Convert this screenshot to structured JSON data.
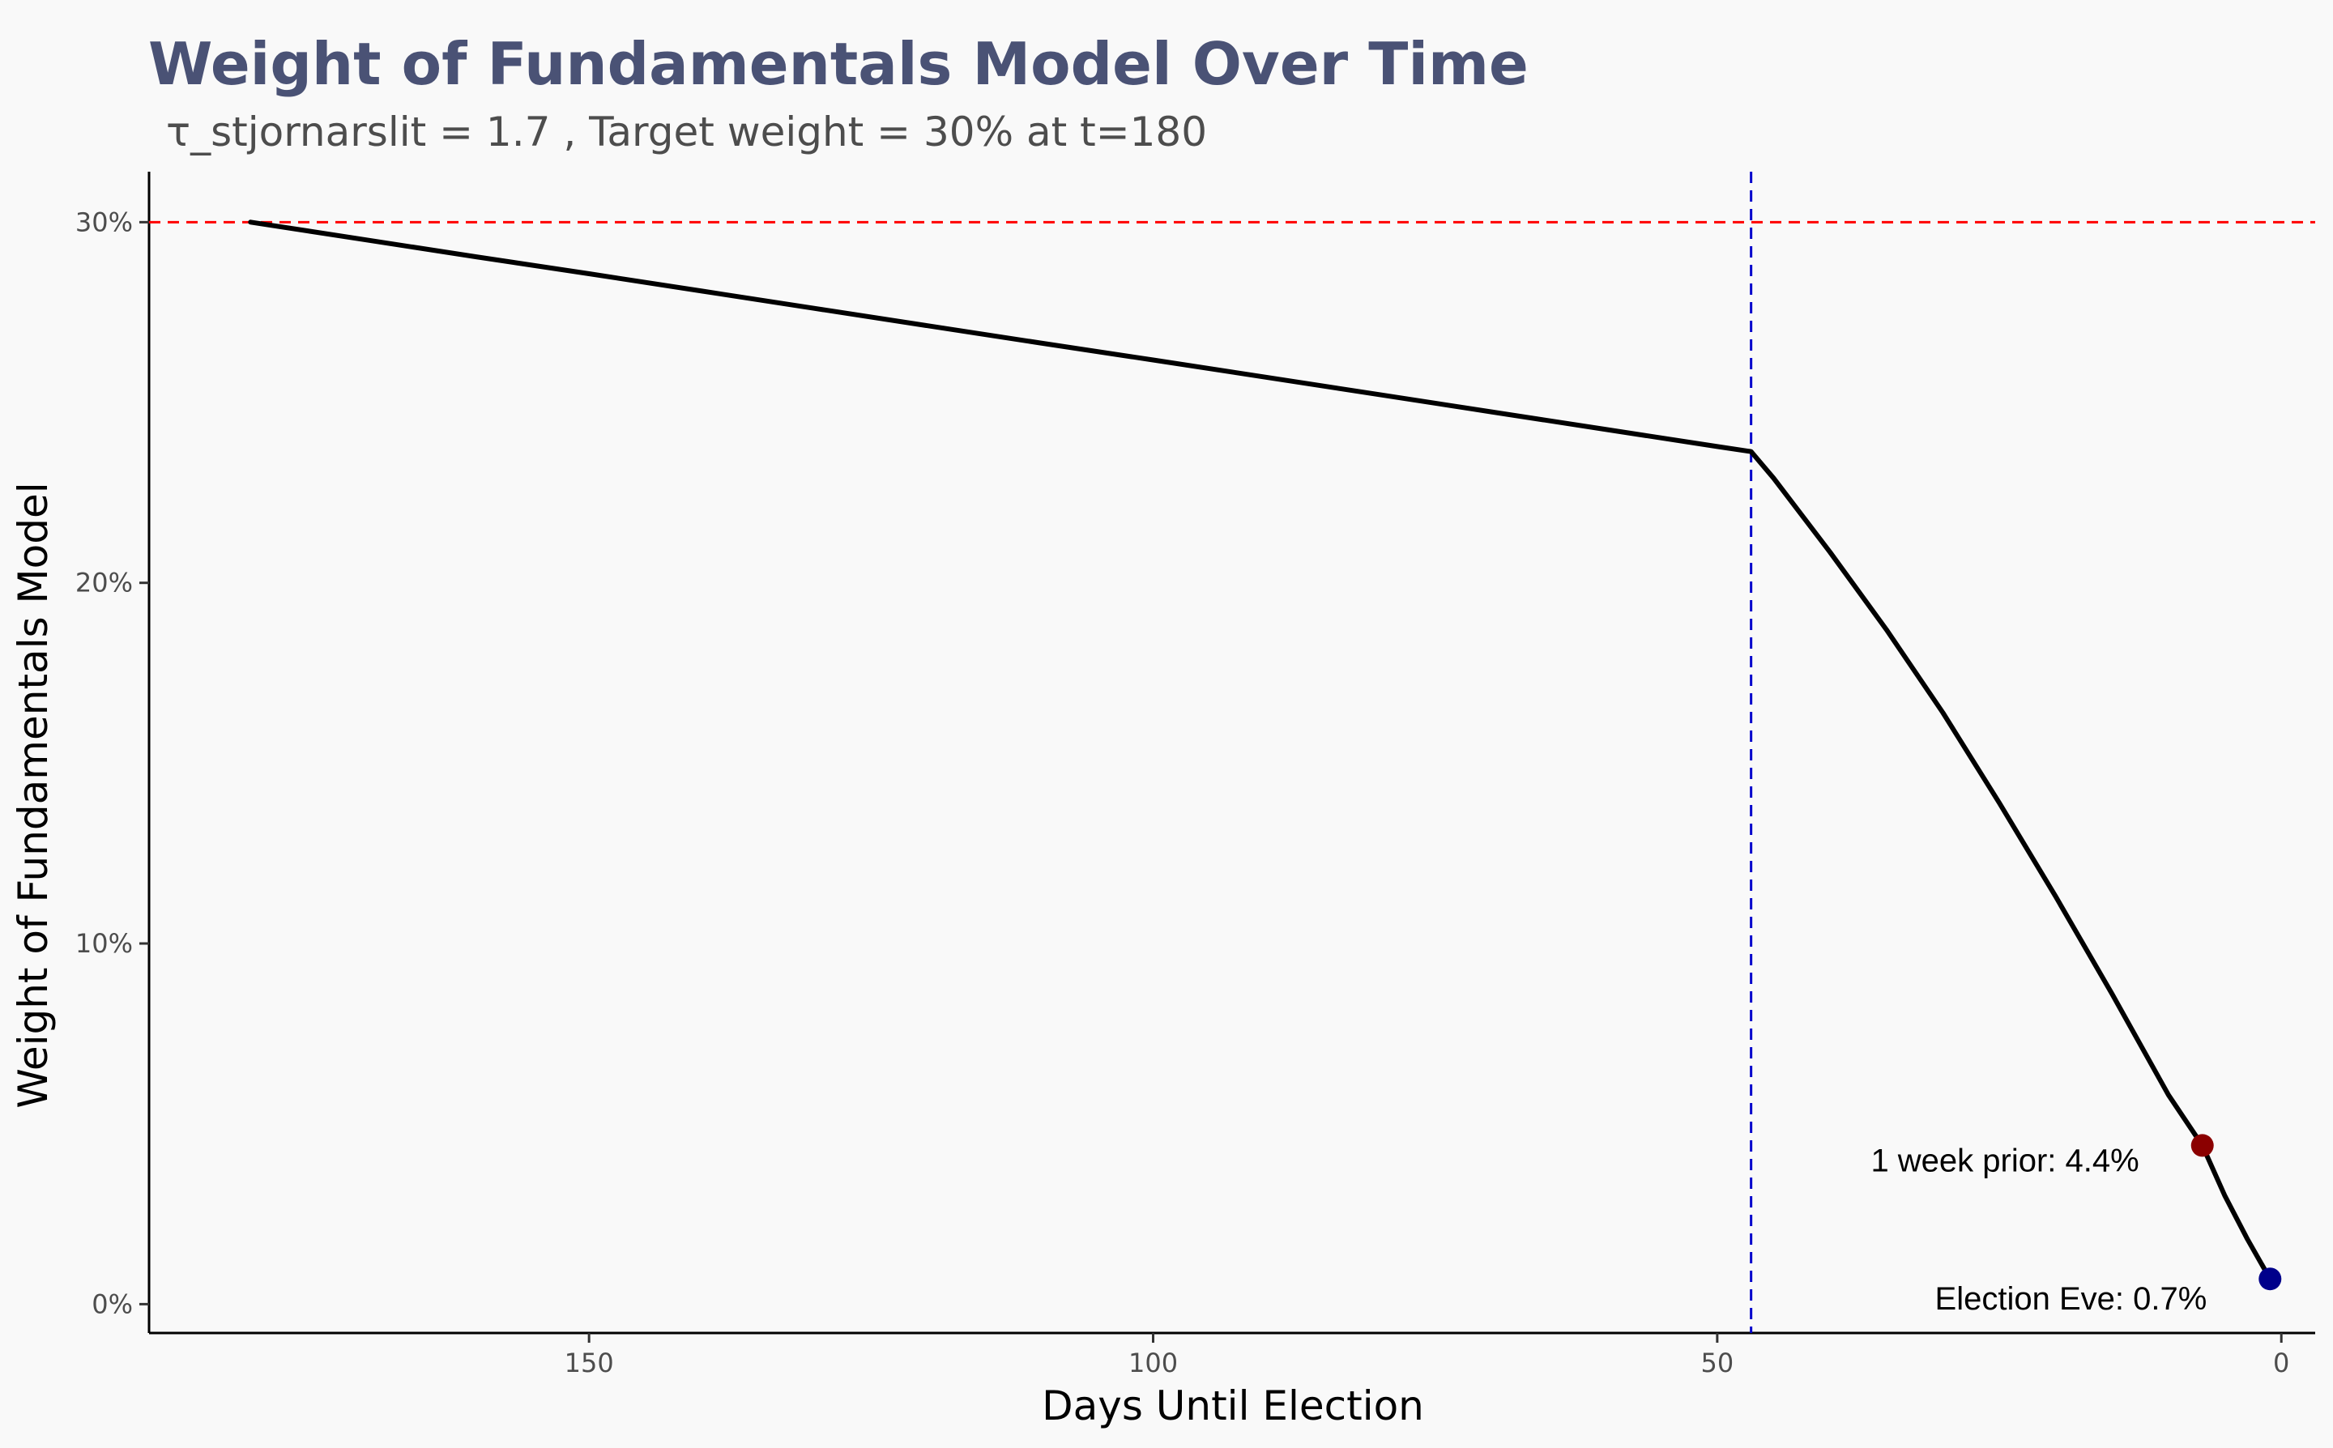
{
  "chart_data": {
    "type": "line",
    "title": "Weight of Fundamentals Model Over Time",
    "subtitle": "τ_stjornarslit = 1.7 , Target weight = 30% at t=180",
    "xlabel": "Days Until Election",
    "ylabel": "Weight of Fundamentals Model",
    "xlim": [
      189,
      -3
    ],
    "ylim": [
      -0.8,
      31.4
    ],
    "x_reversed": true,
    "x_ticks": [
      150,
      100,
      50,
      0
    ],
    "x_tick_labels": [
      "150",
      "100",
      "50",
      "0"
    ],
    "y_ticks": [
      0,
      10,
      20,
      30
    ],
    "y_tick_labels": [
      "0%",
      "10%",
      "20%",
      "30%"
    ],
    "series": [
      {
        "color": "#000000",
        "x": [
          180,
          170,
          160,
          150,
          140,
          130,
          120,
          110,
          100,
          90,
          80,
          70,
          60,
          50,
          47,
          45,
          40,
          35,
          30,
          25,
          20,
          15,
          10,
          7,
          5,
          3,
          1
        ],
        "y": [
          30.0,
          29.52,
          29.04,
          28.57,
          28.09,
          27.61,
          27.13,
          26.65,
          26.18,
          25.7,
          25.22,
          24.74,
          24.26,
          23.78,
          23.64,
          22.9,
          20.85,
          18.7,
          16.4,
          13.9,
          11.3,
          8.6,
          5.8,
          4.4,
          3.0,
          1.8,
          0.7
        ]
      }
    ],
    "reference_lines": [
      {
        "orientation": "horizontal",
        "value": 30,
        "color": "#ff0000",
        "style": "dashed"
      },
      {
        "orientation": "vertical",
        "value": 47,
        "color": "#0000cc",
        "style": "dashed"
      }
    ],
    "points": [
      {
        "x": 7,
        "y": 4.4,
        "color": "#8b0000",
        "label": "1 week prior: 4.4%"
      },
      {
        "x": 1,
        "y": 0.7,
        "color": "#00008b",
        "label": "Election Eve: 0.7%"
      }
    ],
    "grid": false,
    "colors": {
      "background": "#f9f9f9",
      "title": "#4a5275",
      "line": "#000000"
    }
  }
}
